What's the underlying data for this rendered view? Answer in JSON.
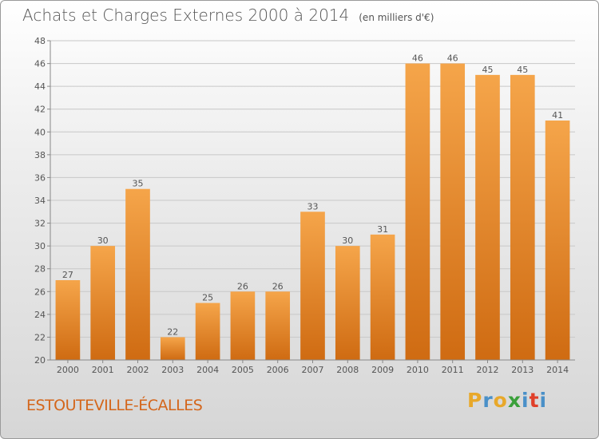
{
  "title": "Achats et Charges Externes 2000 à 2014",
  "unit": "(en milliers d'€)",
  "town": "ESTOUTEVILLE-ÉCALLES",
  "logo": {
    "letters": [
      "P",
      "r",
      "o",
      "x",
      "i",
      "t",
      "i"
    ],
    "colors": [
      "#e8a82a",
      "#4a90c8",
      "#e8a82a",
      "#3aa03a",
      "#4a90c8",
      "#e0402a",
      "#4a90c8"
    ]
  },
  "colors": {
    "bar_light": "#f5a54a",
    "bar_dark": "#cf6b12",
    "grid": "#c8c8c8",
    "text": "#555555",
    "town": "#d4661b"
  },
  "chart_data": {
    "type": "bar",
    "categories": [
      "2000",
      "2001",
      "2002",
      "2003",
      "2004",
      "2005",
      "2006",
      "2007",
      "2008",
      "2009",
      "2010",
      "2011",
      "2012",
      "2013",
      "2014"
    ],
    "values": [
      27,
      30,
      35,
      22,
      25,
      26,
      26,
      33,
      30,
      31,
      46,
      46,
      45,
      45,
      41
    ],
    "ylim": [
      20,
      48
    ],
    "yticks": [
      20,
      22,
      24,
      26,
      28,
      30,
      32,
      34,
      36,
      38,
      40,
      42,
      44,
      46,
      48
    ],
    "grid": true,
    "data_labels": true
  }
}
